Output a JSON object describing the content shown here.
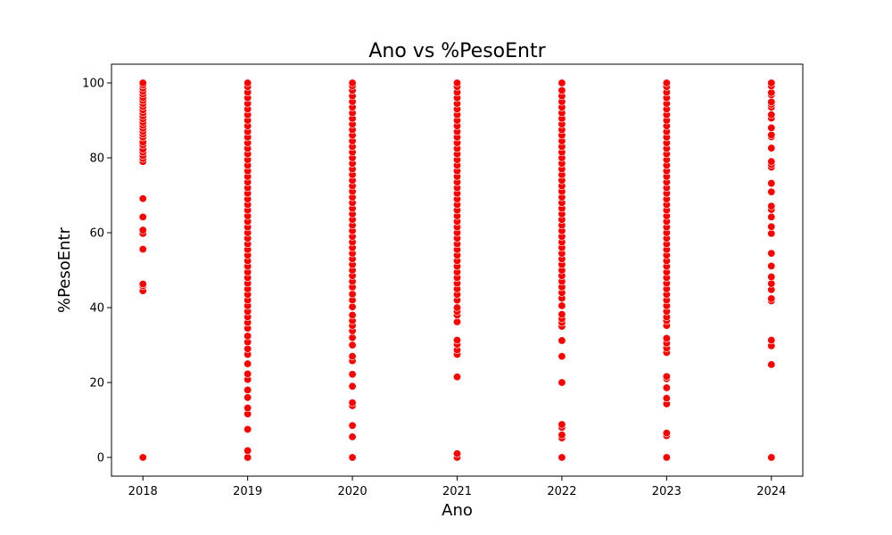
{
  "chart_data": {
    "type": "scatter",
    "title": "Ano vs %PesoEntr",
    "xlabel": "Ano",
    "ylabel": "%PesoEntr",
    "x_ticks": [
      "2018",
      "2019",
      "2020",
      "2021",
      "2022",
      "2023",
      "2024"
    ],
    "y_ticks": [
      "0",
      "20",
      "40",
      "60",
      "80",
      "100"
    ],
    "xlim": [
      2017.7,
      2024.3
    ],
    "ylim": [
      -5,
      105
    ],
    "grid": false,
    "color": "#ff0000",
    "series": [
      {
        "x": 2018,
        "y": [
          0,
          44.5,
          45.8,
          46.3,
          55.6,
          59.8,
          60.7,
          64.2,
          69.1,
          79,
          79.8,
          80.6,
          81.5,
          82.3,
          83.4,
          84.2,
          85.5,
          86.3,
          87.1,
          87.9,
          88.7,
          89.5,
          90.4,
          91.2,
          92,
          92.8,
          93.7,
          94.5,
          95.3,
          96.1,
          97,
          97.8,
          98.6,
          99.4,
          100
        ]
      },
      {
        "x": 2019,
        "y": [
          0,
          1.8,
          7.5,
          11.6,
          13.2,
          16,
          18,
          20.8,
          22.3,
          25,
          27.5,
          29,
          30.8,
          32.4,
          34.5,
          36,
          37.5,
          39,
          40.5,
          42,
          43.5,
          45,
          46.5,
          48,
          49.5,
          51,
          52.5,
          54,
          55.5,
          57,
          58.5,
          60,
          61.5,
          63,
          64.5,
          66,
          67.5,
          69,
          70.5,
          72,
          73.5,
          75,
          76.5,
          78,
          79.5,
          81,
          82.5,
          84,
          85.5,
          87,
          88.5,
          90,
          91.5,
          93,
          94.5,
          96,
          97.5,
          99,
          100
        ]
      },
      {
        "x": 2020,
        "y": [
          0,
          5.5,
          8.5,
          13.8,
          14.6,
          19,
          22.2,
          25.8,
          27,
          30,
          32,
          33.8,
          35.2,
          36.5,
          38,
          40.2,
          42,
          43.6,
          45.5,
          47,
          48.5,
          50,
          51.5,
          53,
          54.5,
          56,
          57.5,
          59,
          60.5,
          62,
          63.5,
          65,
          66.5,
          68,
          69.5,
          71,
          72.5,
          74,
          75.5,
          77,
          78.5,
          80,
          81.5,
          83,
          84.5,
          86,
          87.5,
          89,
          90.5,
          92,
          93.5,
          95,
          96.5,
          98,
          99.2,
          100
        ]
      },
      {
        "x": 2021,
        "y": [
          0,
          1,
          21.5,
          27.5,
          28.7,
          30.2,
          31.3,
          36.2,
          38,
          39,
          40,
          42,
          43.5,
          45,
          46.5,
          48,
          49.5,
          51,
          52.5,
          54,
          55.5,
          57,
          58.5,
          60,
          61.5,
          63,
          64.5,
          66,
          67.5,
          69,
          70.5,
          72,
          73.5,
          75,
          76.5,
          78,
          79.5,
          81,
          82.5,
          84,
          85.5,
          87,
          88.5,
          90,
          91.5,
          93,
          94.5,
          96,
          97.5,
          99,
          100
        ]
      },
      {
        "x": 2022,
        "y": [
          0,
          5.2,
          6,
          8,
          8.8,
          20,
          27,
          31.2,
          35,
          36,
          37,
          38.2,
          40.5,
          42.5,
          44,
          45.5,
          47,
          48.5,
          50,
          51.5,
          53,
          54.5,
          56,
          57.5,
          59,
          60.5,
          62,
          63.5,
          65,
          66.5,
          68,
          69.5,
          71,
          72.5,
          74,
          75.5,
          77,
          78.5,
          80,
          81.5,
          83,
          84.5,
          86,
          87.5,
          89,
          90.5,
          92,
          93.5,
          95,
          96.5,
          98,
          100
        ]
      },
      {
        "x": 2023,
        "y": [
          0,
          5.8,
          6.5,
          14.3,
          15.8,
          18.6,
          21,
          21.6,
          28,
          29.2,
          30.5,
          31.8,
          35.2,
          36.5,
          37.5,
          39,
          40.5,
          42,
          43.5,
          45,
          46.5,
          48,
          49.5,
          51,
          52.5,
          54,
          55.5,
          57,
          58.5,
          60,
          61.5,
          63,
          64.5,
          66,
          67.5,
          69,
          70.5,
          72,
          73.5,
          75,
          76.5,
          78,
          79.5,
          81,
          82.5,
          84,
          85.5,
          87,
          88.5,
          90,
          91.5,
          93,
          94.5,
          96,
          97.5,
          99,
          100
        ]
      },
      {
        "x": 2024,
        "y": [
          0,
          24.8,
          29.8,
          31.3,
          41.8,
          42.4,
          44.8,
          46.4,
          48.2,
          51.1,
          54.5,
          59.8,
          61.6,
          64.2,
          66.2,
          67.1,
          70.9,
          73.2,
          77.5,
          78.2,
          79,
          82.6,
          85.6,
          86.1,
          88,
          90.6,
          91.5,
          93.5,
          94.3,
          94.9,
          96.8,
          97.4,
          99.2,
          100
        ]
      }
    ]
  }
}
